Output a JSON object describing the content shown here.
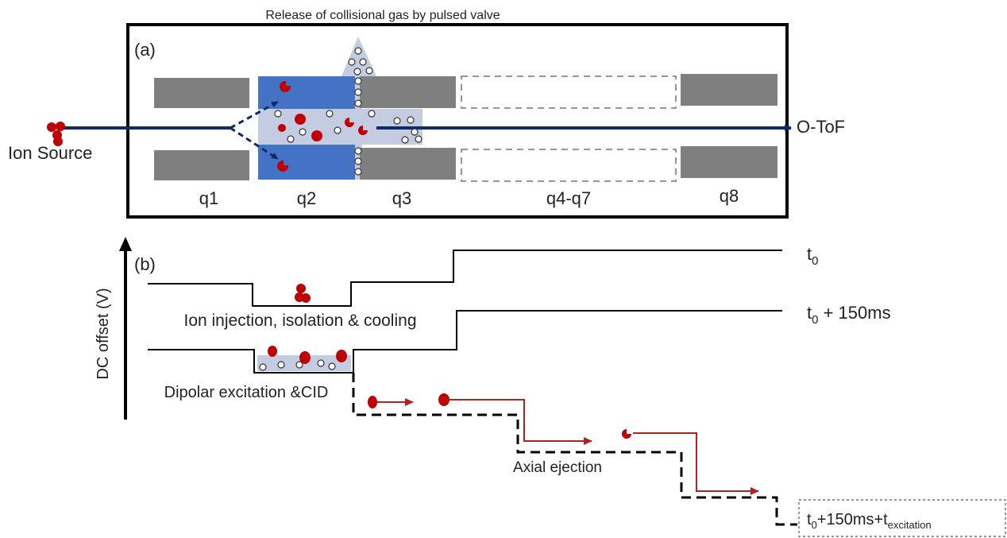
{
  "panel_a": {
    "label": "(a)",
    "gas_release_text": "Release of collisional gas by pulsed valve",
    "ion_source_label": "Ion Source",
    "detector_label": "O-ToF",
    "segments": [
      "q1",
      "q2",
      "q3",
      "q4-q7",
      "q8"
    ]
  },
  "panel_b": {
    "label": "(b)",
    "y_axis_label": "DC offset (V)",
    "time_labels": {
      "t0_base": "t",
      "t0_sub": "0",
      "t150_base": "t",
      "t150_sub": "0",
      "t150_rest": " + 150ms",
      "texc_base": "t",
      "texc_sub": "0",
      "texc_mid": "+150ms+t",
      "texc_sub2": "excitation"
    },
    "captions": {
      "injection": "Ion injection, isolation & cooling",
      "excitation": "Dipolar excitation &CID",
      "ejection": "Axial ejection"
    }
  },
  "colors": {
    "quadrupole_gray": "#7f7f7f",
    "q2_blue": "#4472c4",
    "gas_region": "#c3cce0",
    "ion_red": "#c00000",
    "beam_navy": "#0d2a6b",
    "eject_arrow": "#b22222"
  }
}
